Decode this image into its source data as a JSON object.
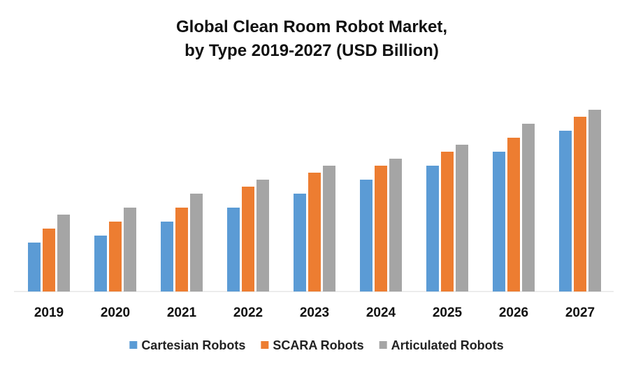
{
  "chart_data": {
    "type": "bar",
    "title_line1": "Global Clean Room Robot Market,",
    "title_line2": "by Type 2019-2027 (USD Billion)",
    "categories": [
      "2019",
      "2020",
      "2021",
      "2022",
      "2023",
      "2024",
      "2025",
      "2026",
      "2027"
    ],
    "series": [
      {
        "name": "Cartesian Robots",
        "color": "#5B9BD5",
        "values": [
          4.2,
          4.8,
          6.0,
          7.2,
          8.4,
          9.6,
          10.8,
          12.0,
          13.8
        ]
      },
      {
        "name": "SCARA Robots",
        "color": "#ED7D31",
        "values": [
          5.4,
          6.0,
          7.2,
          9.0,
          10.2,
          10.8,
          12.0,
          13.2,
          15.0
        ]
      },
      {
        "name": "Articulated Robots",
        "color": "#A5A5A5",
        "values": [
          6.6,
          7.2,
          8.4,
          9.6,
          10.8,
          11.4,
          12.6,
          14.4,
          15.6
        ]
      }
    ],
    "xlabel": "",
    "ylabel": "",
    "ylim": [
      0,
      18
    ],
    "grid": false,
    "legend": "bottom"
  }
}
